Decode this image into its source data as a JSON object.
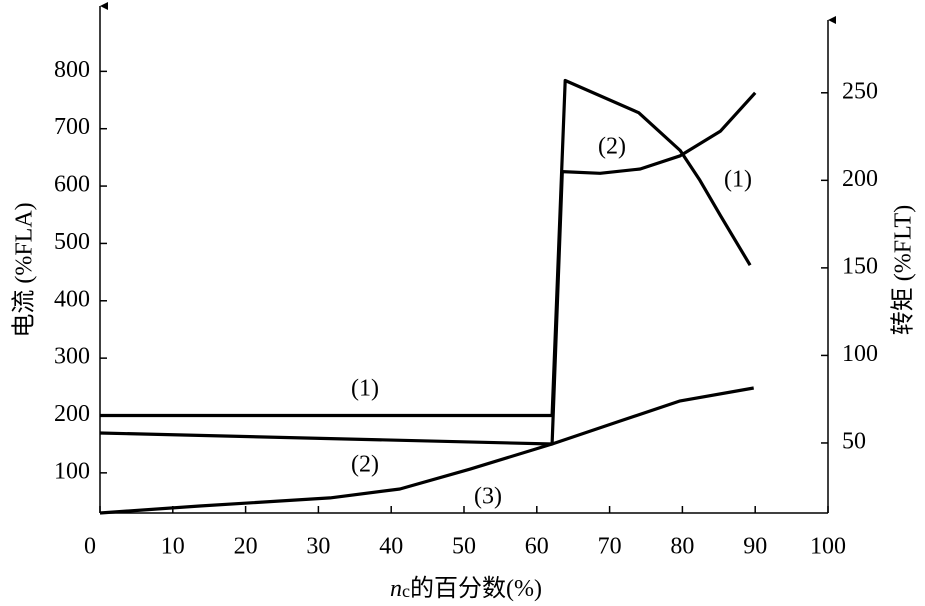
{
  "chart_data": {
    "type": "line",
    "x_label": {
      "var": "n",
      "sub": "c",
      "text": "的百分数(%)"
    },
    "y_label": "电流 (%FLA)",
    "y2_label": "转矩 (%FLT)",
    "xlim": [
      0,
      100
    ],
    "xticks": [
      0,
      10,
      20,
      30,
      40,
      50,
      60,
      70,
      80,
      90,
      100
    ],
    "ylim": [
      30,
      900
    ],
    "yticks": [
      100,
      200,
      300,
      400,
      500,
      600,
      700,
      800
    ],
    "y2lim": [
      10,
      295
    ],
    "y2ticks": [
      50,
      100,
      150,
      200,
      250
    ],
    "series": [
      {
        "color": "#000000",
        "axis": "y",
        "x": [
          0,
          62.1,
          62.1,
          63.9,
          74,
          79.7,
          82.4,
          85.2,
          89.3
        ],
        "values": [
          200,
          200,
          200,
          784,
          728,
          662,
          610,
          549,
          462
        ]
      },
      {
        "color": "#000000",
        "axis": "y2",
        "x": [
          0,
          62.1,
          63.5,
          68.7,
          74.2,
          79.7,
          85.2,
          90
        ],
        "values": [
          55.7,
          49.4,
          205,
          204,
          206.5,
          214,
          228,
          250
        ]
      },
      {
        "color": "#000000",
        "axis": "y2",
        "x": [
          0,
          13.7,
          31.6,
          41.2,
          50.8,
          62.1,
          71.4,
          79.7,
          89.8
        ],
        "values": [
          10,
          14,
          18.6,
          23.7,
          35,
          49.4,
          62.5,
          74,
          81.4
        ]
      }
    ],
    "annotations": [
      "(1)",
      "(2)",
      "(1)",
      "(2)",
      "(3)"
    ]
  }
}
